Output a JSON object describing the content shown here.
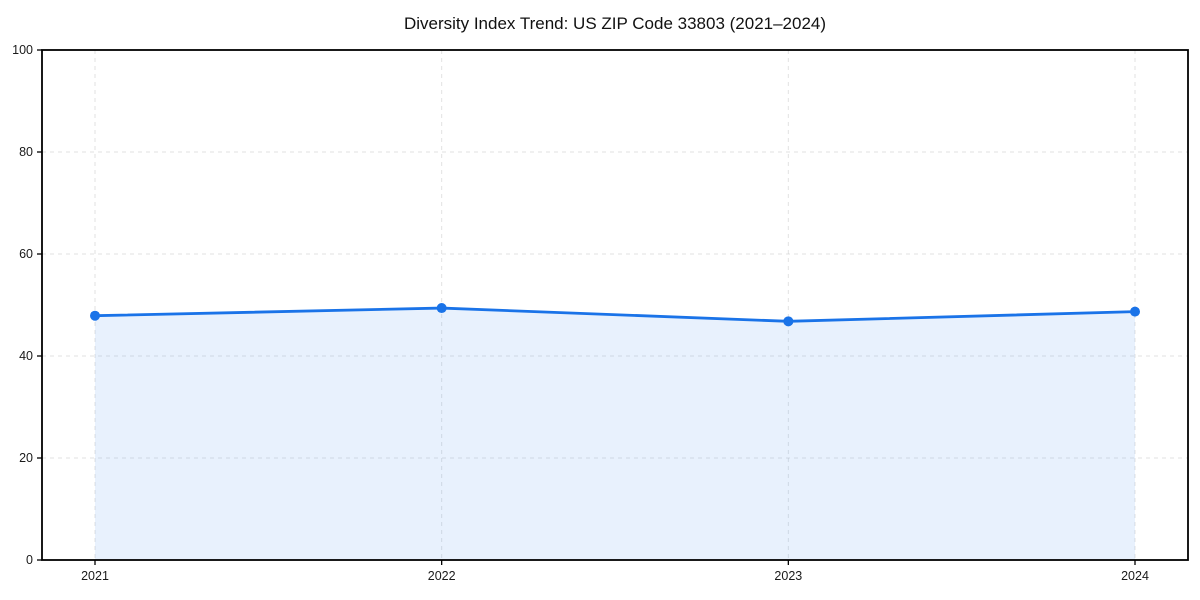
{
  "chart_data": {
    "type": "area",
    "title": "Diversity Index Trend: US ZIP Code 33803 (2021–2024)",
    "categories": [
      "2021",
      "2022",
      "2023",
      "2024"
    ],
    "series": [
      {
        "name": "Diversity Index",
        "values": [
          47.9,
          49.4,
          46.8,
          48.7
        ]
      }
    ],
    "xlabel": "",
    "ylabel": "",
    "ylim": [
      0,
      100
    ],
    "yticks": [
      0,
      20,
      40,
      60,
      80,
      100
    ],
    "grid": true,
    "grid_style": "dashed",
    "legend_position": "none",
    "colors": {
      "line": "#1a73e8",
      "marker": "#1a73e8",
      "fill": "#1a73e8",
      "fill_opacity": 0.1,
      "grid": "#cccccc",
      "spine": "#000000",
      "tick_text": "#1a1a1a",
      "background": "#ffffff"
    }
  }
}
